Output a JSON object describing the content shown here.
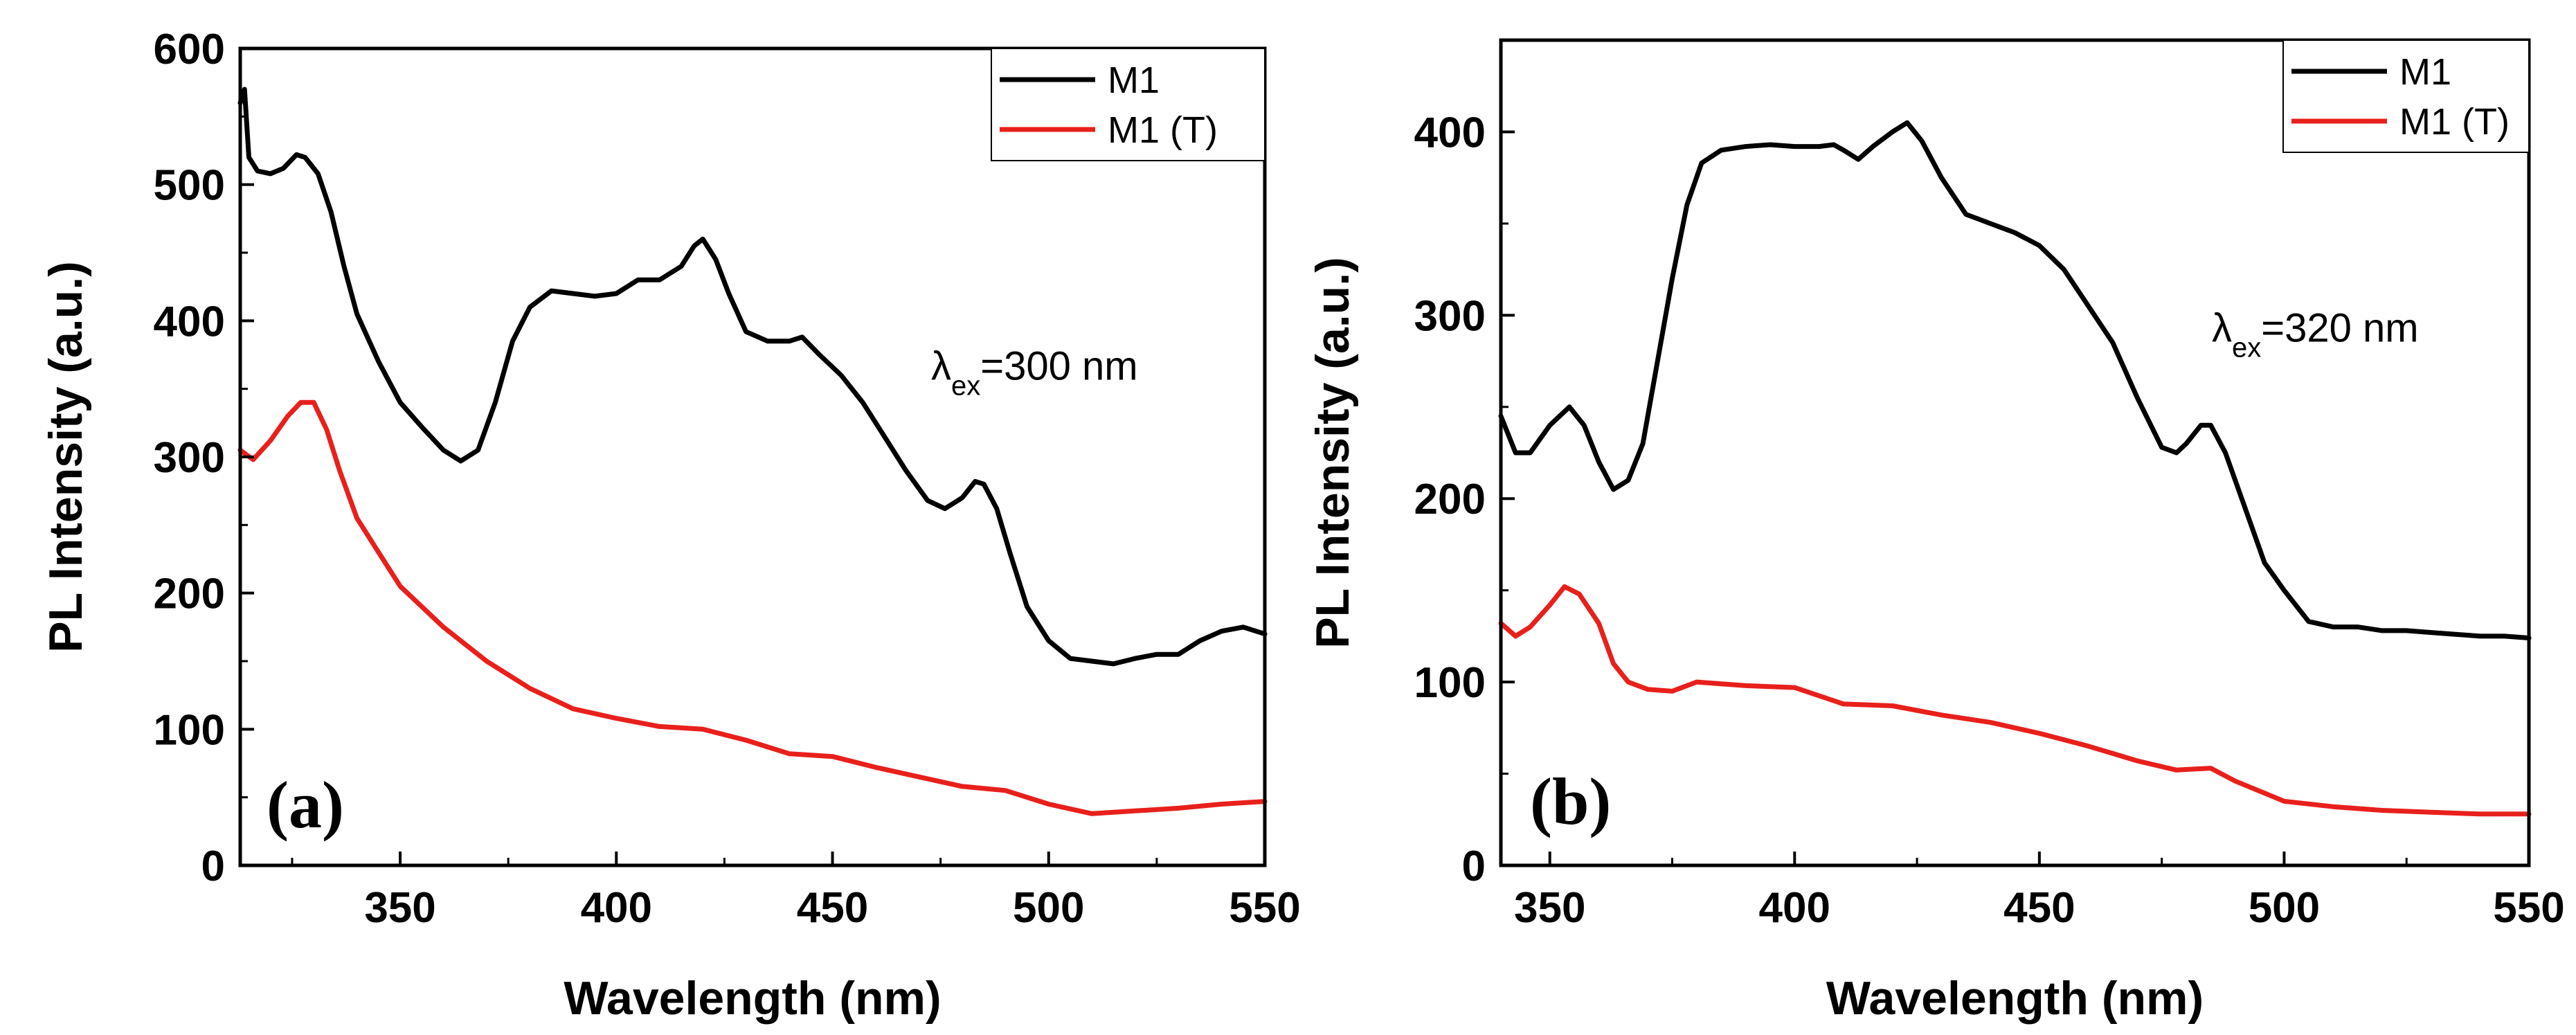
{
  "chart_data": [
    {
      "type": "line",
      "panel_label": "(a)",
      "xlabel": "Wavelength (nm)",
      "ylabel": "PL Intensity (a.u.)",
      "xlim": [
        313,
        550
      ],
      "ylim": [
        0,
        600
      ],
      "xticks": [
        350,
        400,
        450,
        500,
        550
      ],
      "yticks": [
        0,
        100,
        200,
        300,
        400,
        500,
        600
      ],
      "annotation": {
        "symbol": "λ",
        "subscript": "ex",
        "text": "=300 nm"
      },
      "legend_position": "top-right",
      "series": [
        {
          "name": "M1",
          "color": "#000000",
          "x": [
            313,
            314,
            315,
            317,
            320,
            323,
            326,
            328,
            331,
            334,
            337,
            340,
            345,
            350,
            355,
            360,
            364,
            368,
            372,
            376,
            380,
            385,
            390,
            395,
            400,
            405,
            410,
            415,
            418,
            420,
            423,
            426,
            430,
            435,
            440,
            443,
            447,
            452,
            457,
            462,
            467,
            472,
            476,
            480,
            483,
            485,
            488,
            491,
            495,
            500,
            505,
            510,
            515,
            520,
            525,
            530,
            535,
            540,
            545,
            550
          ],
          "y": [
            560,
            570,
            520,
            510,
            508,
            512,
            522,
            520,
            508,
            480,
            440,
            405,
            370,
            340,
            322,
            305,
            297,
            305,
            340,
            385,
            410,
            422,
            420,
            418,
            420,
            430,
            430,
            440,
            455,
            460,
            445,
            420,
            392,
            385,
            385,
            388,
            375,
            360,
            340,
            315,
            290,
            268,
            262,
            270,
            282,
            280,
            262,
            230,
            190,
            165,
            152,
            150,
            148,
            152,
            155,
            155,
            165,
            172,
            175,
            170
          ]
        },
        {
          "name": "M1 (T)",
          "color": "#e8201c",
          "x": [
            313,
            316,
            320,
            324,
            327,
            330,
            333,
            336,
            340,
            345,
            350,
            360,
            370,
            380,
            390,
            400,
            410,
            420,
            430,
            440,
            450,
            460,
            470,
            480,
            490,
            500,
            510,
            520,
            530,
            540,
            550
          ],
          "y": [
            305,
            298,
            312,
            330,
            340,
            340,
            320,
            290,
            255,
            230,
            205,
            175,
            150,
            130,
            115,
            108,
            102,
            100,
            92,
            82,
            80,
            72,
            65,
            58,
            55,
            45,
            38,
            40,
            42,
            45,
            47
          ]
        }
      ]
    },
    {
      "type": "line",
      "panel_label": "(b)",
      "xlabel": "Wavelength (nm)",
      "ylabel": "PL Intensity (a.u.)",
      "xlim": [
        340,
        550
      ],
      "ylim": [
        0,
        450
      ],
      "xticks": [
        350,
        400,
        450,
        500,
        550
      ],
      "yticks": [
        0,
        100,
        200,
        300,
        400
      ],
      "annotation": {
        "symbol": "λ",
        "subscript": "ex",
        "text": "=320 nm"
      },
      "legend_position": "top-right",
      "series": [
        {
          "name": "M1",
          "color": "#000000",
          "x": [
            340,
            343,
            346,
            350,
            354,
            357,
            360,
            363,
            366,
            369,
            372,
            375,
            378,
            381,
            385,
            390,
            395,
            400,
            405,
            408,
            410,
            413,
            416,
            420,
            423,
            426,
            430,
            435,
            440,
            445,
            450,
            455,
            460,
            465,
            470,
            475,
            478,
            480,
            483,
            485,
            488,
            492,
            496,
            500,
            505,
            510,
            515,
            520,
            525,
            530,
            535,
            540,
            545,
            550
          ],
          "y": [
            245,
            225,
            225,
            240,
            250,
            240,
            220,
            205,
            210,
            230,
            275,
            320,
            360,
            383,
            390,
            392,
            393,
            392,
            392,
            393,
            390,
            385,
            392,
            400,
            405,
            395,
            375,
            355,
            350,
            345,
            338,
            325,
            305,
            285,
            255,
            228,
            225,
            230,
            240,
            240,
            225,
            195,
            165,
            150,
            133,
            130,
            130,
            128,
            128,
            127,
            126,
            125,
            125,
            124
          ]
        },
        {
          "name": "M1 (T)",
          "color": "#e8201c",
          "x": [
            340,
            343,
            346,
            350,
            353,
            356,
            360,
            363,
            366,
            370,
            375,
            380,
            390,
            400,
            410,
            420,
            430,
            440,
            450,
            460,
            470,
            478,
            485,
            490,
            500,
            510,
            520,
            530,
            540,
            550
          ],
          "y": [
            132,
            125,
            130,
            142,
            152,
            148,
            132,
            110,
            100,
            96,
            95,
            100,
            98,
            97,
            88,
            87,
            82,
            78,
            72,
            65,
            57,
            52,
            53,
            46,
            35,
            32,
            30,
            29,
            28,
            28
          ]
        }
      ]
    }
  ]
}
